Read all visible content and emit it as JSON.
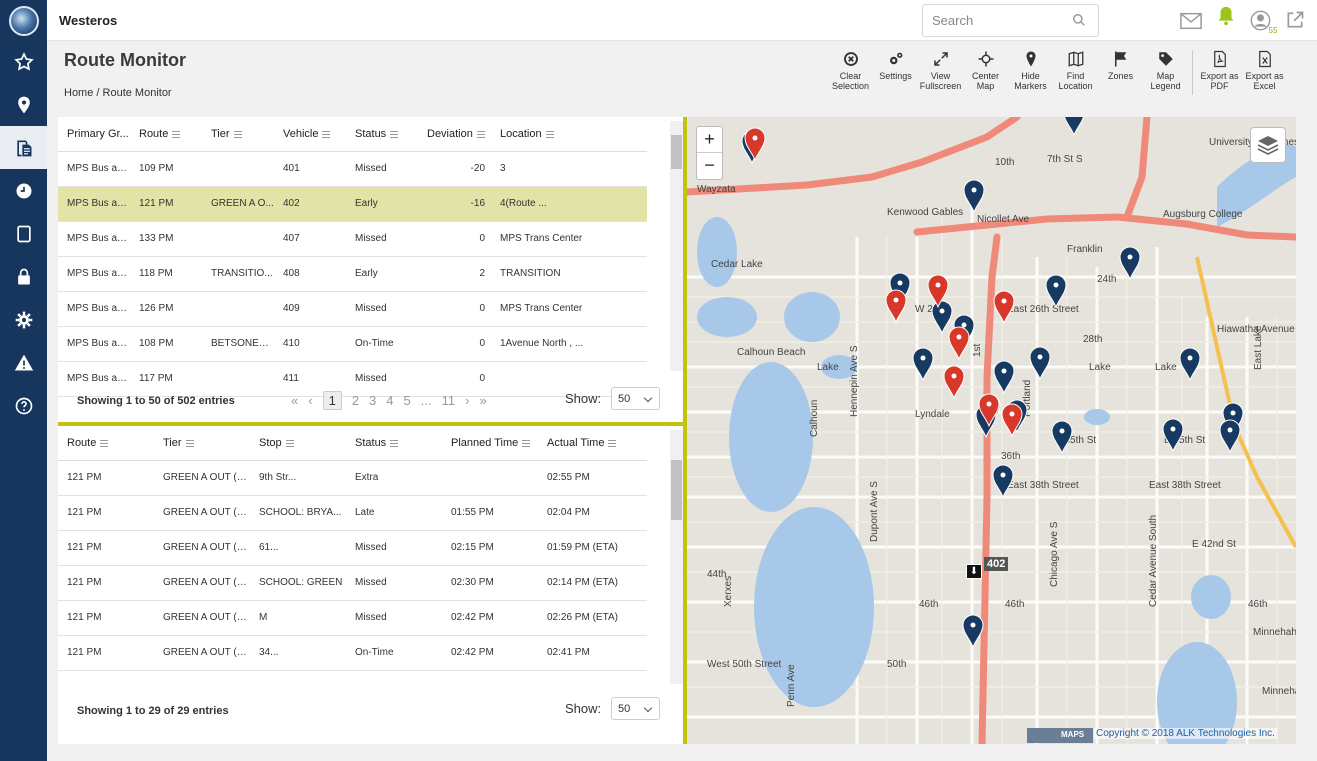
{
  "app": {
    "name": "Westeros"
  },
  "search": {
    "placeholder": "Search"
  },
  "notifications": {
    "count": "55"
  },
  "sidebar": {
    "items": [
      "star-icon",
      "map-pin-icon",
      "document-icon",
      "clock-icon",
      "tablet-icon",
      "lock-icon",
      "gear-icon",
      "warning-icon",
      "help-icon"
    ]
  },
  "page": {
    "title": "Route Monitor",
    "breadcrumb": "Home / Route Monitor"
  },
  "toolbar": [
    {
      "name": "clear-selection",
      "label": "Clear Selection"
    },
    {
      "name": "settings",
      "label": "Settings"
    },
    {
      "name": "view-fullscreen",
      "label": "View Fullscreen"
    },
    {
      "name": "center-map",
      "label": "Center Map"
    },
    {
      "name": "hide-markers",
      "label": "Hide Markers"
    },
    {
      "name": "find-location",
      "label": "Find Location"
    },
    {
      "name": "zones",
      "label": "Zones"
    },
    {
      "name": "map-legend",
      "label": "Map Legend"
    },
    {
      "name": "export-pdf",
      "label": "Export as PDF"
    },
    {
      "name": "export-excel",
      "label": "Export as Excel"
    }
  ],
  "routes_grid": {
    "headers": [
      "Primary Gr...",
      "Route",
      "Tier",
      "Vehicle",
      "Status",
      "Deviation",
      "Location"
    ],
    "rows": [
      [
        "MPS Bus an...",
        "109 PM",
        "",
        "401",
        "Missed",
        "-20",
        "3"
      ],
      [
        "MPS Bus an...",
        "121 PM",
        "GREEN A O...",
        "402",
        "Early",
        "-16",
        "4(Route ..."
      ],
      [
        "MPS Bus an...",
        "133 PM",
        "",
        "407",
        "Missed",
        "0",
        "MPS Trans Center"
      ],
      [
        "MPS Bus an...",
        "118 PM",
        "TRANSITIO...",
        "408",
        "Early",
        "2",
        "TRANSITION"
      ],
      [
        "MPS Bus an...",
        "126 PM",
        "",
        "409",
        "Missed",
        "0",
        "MPS Trans Center"
      ],
      [
        "MPS Bus an...",
        "108 PM",
        "BETSONEF ...",
        "410",
        "On-Time",
        "0",
        "1Avenue North , ..."
      ],
      [
        "MPS Bus an...",
        "117 PM",
        "",
        "411",
        "Missed",
        "0",
        ""
      ]
    ],
    "selected_row": 1,
    "info": "Showing 1 to 50 of 502 entries",
    "pages": [
      "1",
      "2",
      "3",
      "4",
      "5",
      "...",
      "11"
    ],
    "show_label": "Show:",
    "show_value": "50"
  },
  "stops_grid": {
    "headers": [
      "Route",
      "Tier",
      "Stop",
      "Status",
      "Planned Time",
      "Actual Time"
    ],
    "rows": [
      [
        "121 PM",
        "GREEN A OUT (2...",
        "9th Str...",
        "Extra",
        "",
        "02:55 PM"
      ],
      [
        "121 PM",
        "GREEN A OUT (2...",
        "SCHOOL: BRYA...",
        "Late",
        "01:55 PM",
        "02:04 PM"
      ],
      [
        "121 PM",
        "GREEN A OUT (2...",
        "61...",
        "Missed",
        "02:15 PM",
        "01:59 PM (ETA)"
      ],
      [
        "121 PM",
        "GREEN A OUT (2...",
        "SCHOOL: GREEN",
        "Missed",
        "02:30 PM",
        "02:14 PM (ETA)"
      ],
      [
        "121 PM",
        "GREEN A OUT (2...",
        "M",
        "Missed",
        "02:42 PM",
        "02:26 PM (ETA)"
      ],
      [
        "121 PM",
        "GREEN A OUT (2...",
        "34...",
        "On-Time",
        "02:42 PM",
        "02:41 PM"
      ]
    ],
    "info": "Showing 1 to 29 of 29 entries",
    "show_label": "Show:",
    "show_value": "50"
  },
  "map": {
    "vehicle_label": "402",
    "copyright": "Copyright © 2018 ALK Technologies Inc.",
    "logo_text": "MAPS",
    "labels": [
      "Wayzata",
      "Kenwood Gables",
      "10th",
      "7th St S",
      "University of Minnesota",
      "Augsburg College",
      "Franklin",
      "24th",
      "Cedar Lake",
      "East 26th Street",
      "W 26th",
      "28th",
      "Calhoun Beach",
      "Lake",
      "Lake",
      "Lake",
      "East Lake",
      "Hennepin Ave S",
      "Nicollet Ave",
      "Lyndale",
      "1st",
      "Portland",
      "E 35th St",
      "E 35th St",
      "Calhoun",
      "36th",
      "East 38th Street",
      "East 38th Street",
      "E 42nd St",
      "Dupont Ave S",
      "Chicago Ave S",
      "Cedar Avenue South",
      "44th",
      "46th",
      "46th",
      "46th",
      "Xerxes",
      "Minnehaha",
      "Hiawatha Avenue",
      "West 50th Street",
      "50th",
      "Penn Ave",
      "Minneha"
    ],
    "pins_red": 8,
    "pins_blue": 21
  },
  "colors": {
    "sidebar": "#16365e",
    "accent": "#c3c30f",
    "selected_row": "#e1e4a6",
    "pin_blue": "#163a62",
    "pin_red": "#d8382a",
    "highway": "#ef8a7a",
    "water": "#a7c8e8"
  }
}
